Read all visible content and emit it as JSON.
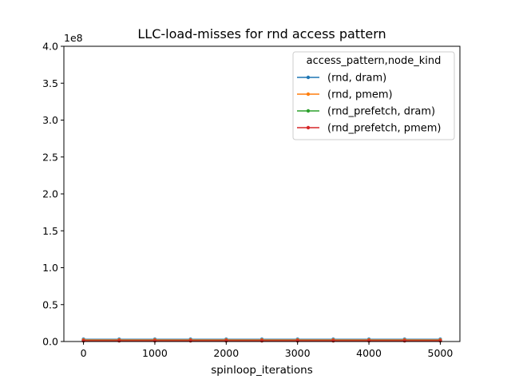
{
  "chart_data": {
    "type": "line",
    "title": "LLC-load-misses for rnd access pattern",
    "xlabel": "spinloop_iterations",
    "ylabel": "",
    "y_offset_label": "1e8",
    "xlim": [
      -275,
      5275
    ],
    "ylim": [
      0,
      4.0
    ],
    "x_ticks": [
      0,
      1000,
      2000,
      3000,
      4000,
      5000
    ],
    "x_tick_labels": [
      "0",
      "1000",
      "2000",
      "3000",
      "4000",
      "5000"
    ],
    "y_ticks": [
      0,
      0.5,
      1.0,
      1.5,
      2.0,
      2.5,
      3.0,
      3.5,
      4.0
    ],
    "y_tick_labels": [
      "0.0",
      "0.5",
      "1.0",
      "1.5",
      "2.0",
      "2.5",
      "3.0",
      "3.5",
      "4.0"
    ],
    "grid": false,
    "legend": {
      "title": "access_pattern,node_kind",
      "placement": "top-right"
    },
    "x": [
      0,
      500,
      1000,
      1500,
      2000,
      2500,
      3000,
      3500,
      4000,
      4500,
      5000
    ],
    "series": [
      {
        "name": "(rnd, dram)",
        "color": "#1f77b4",
        "values": [
          0.03,
          0.03,
          0.03,
          0.03,
          0.03,
          0.03,
          0.03,
          0.03,
          0.03,
          0.03,
          0.03
        ]
      },
      {
        "name": "(rnd, pmem)",
        "color": "#ff7f0e",
        "values": [
          0.02,
          0.02,
          0.02,
          0.02,
          0.02,
          0.02,
          0.02,
          0.02,
          0.02,
          0.02,
          0.02
        ]
      },
      {
        "name": "(rnd_prefetch, dram)",
        "color": "#2ca02c",
        "values": [
          0.01,
          0.01,
          0.01,
          0.01,
          0.01,
          0.01,
          0.01,
          0.01,
          0.01,
          0.01,
          0.01
        ]
      },
      {
        "name": "(rnd_prefetch, pmem)",
        "color": "#d62728",
        "values": [
          0.01,
          0.01,
          0.01,
          0.01,
          0.01,
          0.01,
          0.01,
          0.01,
          0.01,
          0.01,
          0.01
        ]
      }
    ]
  }
}
